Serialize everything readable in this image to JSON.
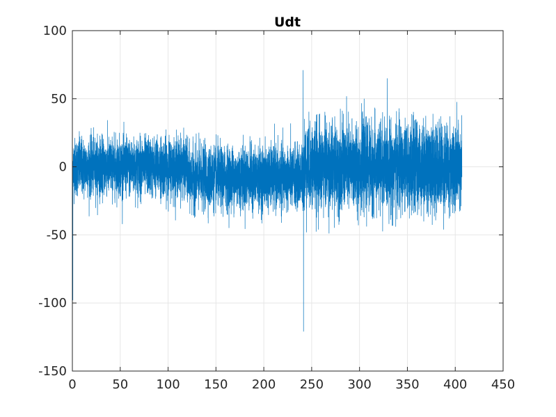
{
  "chart_data": {
    "type": "line",
    "title": "Udt",
    "xlabel": "",
    "ylabel": "",
    "xlim": [
      0,
      450
    ],
    "ylim": [
      -150,
      100
    ],
    "xticks": [
      0,
      50,
      100,
      150,
      200,
      250,
      300,
      350,
      400,
      450
    ],
    "yticks": [
      -150,
      -100,
      -50,
      0,
      50,
      100
    ],
    "grid": true,
    "series_color": "#0072BD",
    "series": [
      {
        "x_range": [
          0,
          407
        ],
        "segments": [
          {
            "x": [
              0,
              120
            ],
            "mean": 0,
            "typical_range": [
              -23,
              23
            ],
            "extremes": [
              -45,
              41
            ]
          },
          {
            "x": [
              120,
              241
            ],
            "mean": -8,
            "typical_range": [
              -32,
              17
            ],
            "extremes": [
              -48,
              37
            ]
          },
          {
            "x": [
              241,
              407
            ],
            "mean": 0,
            "typical_range": [
              -36,
              33
            ],
            "extremes": [
              -60,
              65
            ]
          }
        ],
        "spikes": [
          {
            "x": 0.5,
            "y": -98
          },
          {
            "x": 241,
            "y": 71
          },
          {
            "x": 241.5,
            "y": -121
          }
        ]
      }
    ]
  }
}
